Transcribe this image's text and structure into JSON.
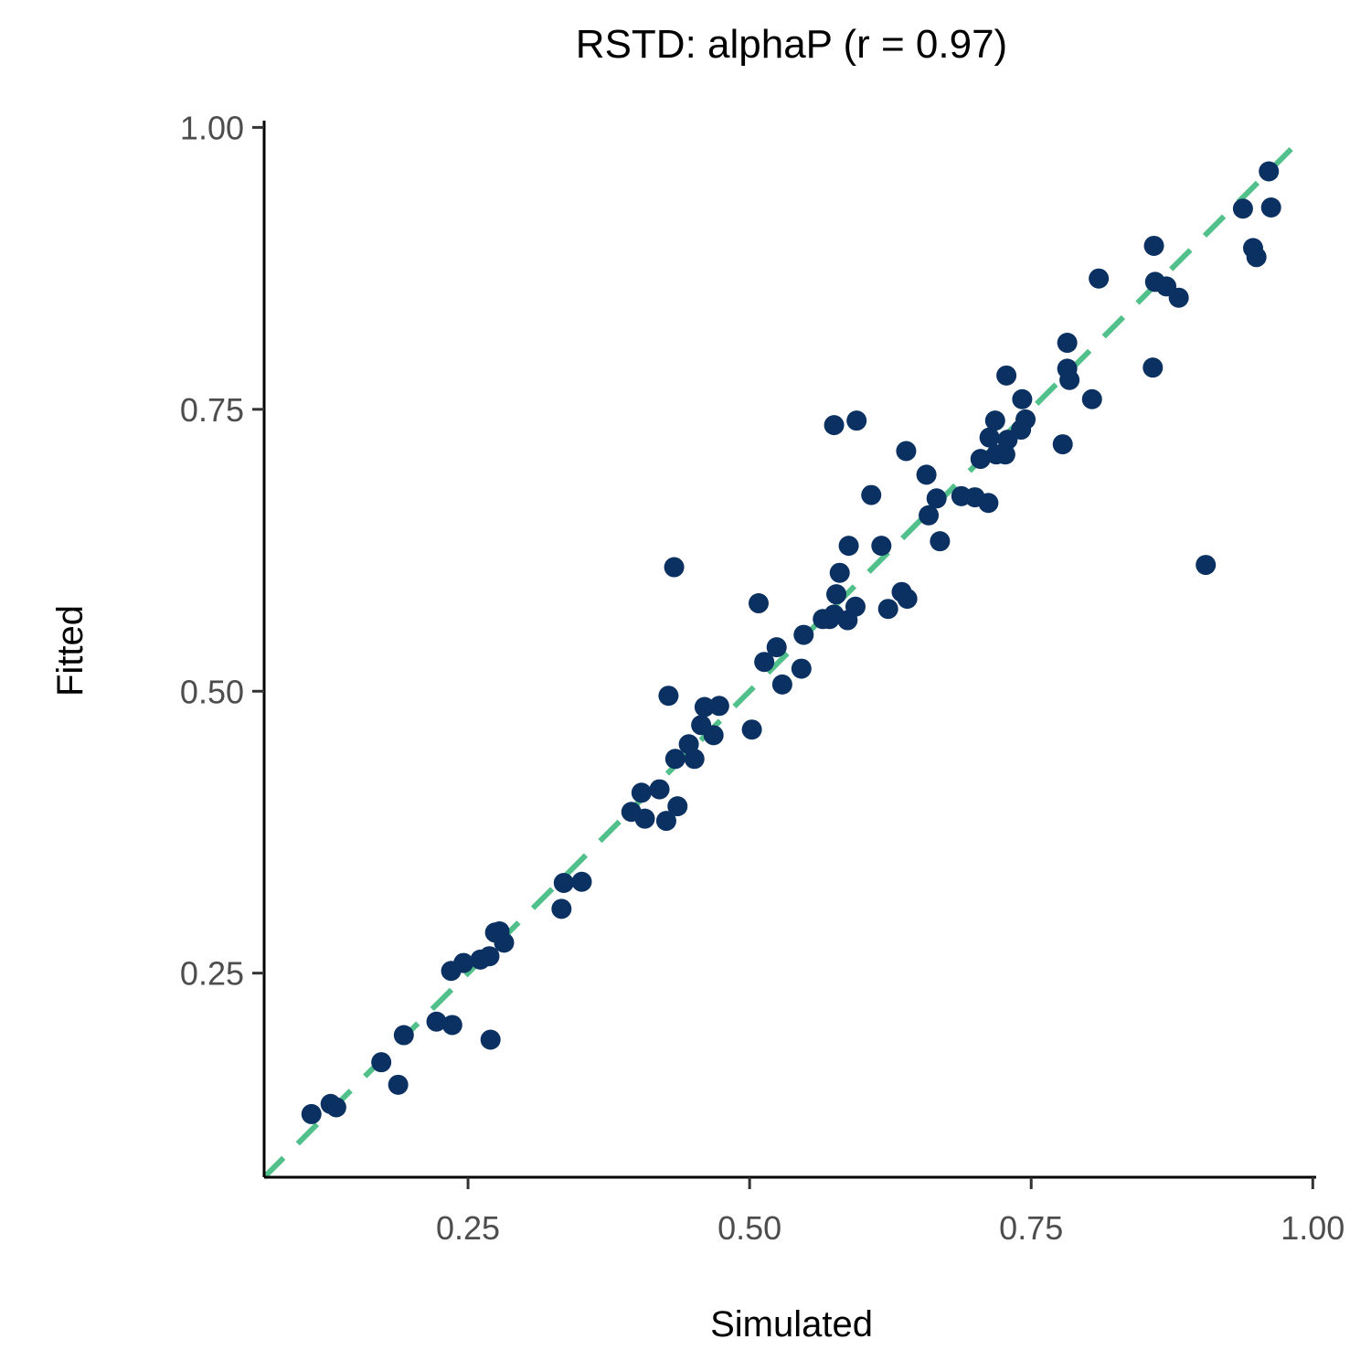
{
  "chart_data": {
    "type": "scatter",
    "title": "RSTD: alphaP (r = 0.97)",
    "xlabel": "Simulated",
    "ylabel": "Fitted",
    "xlim": [
      0.069,
      1.003
    ],
    "ylim": [
      0.069,
      1.006
    ],
    "xticks": [
      "0.25",
      "0.50",
      "0.75",
      "1.00"
    ],
    "yticks": [
      "0.25",
      "0.50",
      "0.75",
      "1.00"
    ],
    "grid": false,
    "point_color": "#0a3161",
    "reference_line": {
      "type": "identity",
      "style": "dashed",
      "color": "#52c08a"
    },
    "points": [
      [
        0.111,
        0.125
      ],
      [
        0.128,
        0.134
      ],
      [
        0.133,
        0.131
      ],
      [
        0.173,
        0.171
      ],
      [
        0.188,
        0.151
      ],
      [
        0.193,
        0.195
      ],
      [
        0.222,
        0.207
      ],
      [
        0.236,
        0.204
      ],
      [
        0.27,
        0.191
      ],
      [
        0.235,
        0.252
      ],
      [
        0.246,
        0.259
      ],
      [
        0.261,
        0.262
      ],
      [
        0.269,
        0.265
      ],
      [
        0.274,
        0.286
      ],
      [
        0.278,
        0.287
      ],
      [
        0.282,
        0.277
      ],
      [
        0.333,
        0.307
      ],
      [
        0.335,
        0.33
      ],
      [
        0.351,
        0.331
      ],
      [
        0.395,
        0.393
      ],
      [
        0.404,
        0.41
      ],
      [
        0.407,
        0.387
      ],
      [
        0.42,
        0.413
      ],
      [
        0.426,
        0.385
      ],
      [
        0.436,
        0.398
      ],
      [
        0.434,
        0.44
      ],
      [
        0.428,
        0.496
      ],
      [
        0.433,
        0.61
      ],
      [
        0.446,
        0.453
      ],
      [
        0.451,
        0.44
      ],
      [
        0.457,
        0.47
      ],
      [
        0.46,
        0.486
      ],
      [
        0.468,
        0.461
      ],
      [
        0.473,
        0.487
      ],
      [
        0.502,
        0.466
      ],
      [
        0.508,
        0.578
      ],
      [
        0.513,
        0.526
      ],
      [
        0.524,
        0.539
      ],
      [
        0.529,
        0.506
      ],
      [
        0.546,
        0.52
      ],
      [
        0.548,
        0.55
      ],
      [
        0.565,
        0.564
      ],
      [
        0.571,
        0.564
      ],
      [
        0.575,
        0.568
      ],
      [
        0.577,
        0.586
      ],
      [
        0.58,
        0.605
      ],
      [
        0.587,
        0.563
      ],
      [
        0.594,
        0.575
      ],
      [
        0.588,
        0.629
      ],
      [
        0.575,
        0.736
      ],
      [
        0.595,
        0.74
      ],
      [
        0.608,
        0.674
      ],
      [
        0.617,
        0.629
      ],
      [
        0.623,
        0.573
      ],
      [
        0.635,
        0.588
      ],
      [
        0.64,
        0.582
      ],
      [
        0.639,
        0.713
      ],
      [
        0.657,
        0.692
      ],
      [
        0.659,
        0.656
      ],
      [
        0.666,
        0.671
      ],
      [
        0.669,
        0.633
      ],
      [
        0.688,
        0.673
      ],
      [
        0.7,
        0.672
      ],
      [
        0.712,
        0.667
      ],
      [
        0.705,
        0.706
      ],
      [
        0.713,
        0.725
      ],
      [
        0.718,
        0.74
      ],
      [
        0.719,
        0.71
      ],
      [
        0.727,
        0.71
      ],
      [
        0.728,
        0.78
      ],
      [
        0.729,
        0.723
      ],
      [
        0.741,
        0.732
      ],
      [
        0.745,
        0.741
      ],
      [
        0.742,
        0.759
      ],
      [
        0.778,
        0.719
      ],
      [
        0.782,
        0.809
      ],
      [
        0.782,
        0.786
      ],
      [
        0.784,
        0.776
      ],
      [
        0.804,
        0.759
      ],
      [
        0.81,
        0.866
      ],
      [
        0.858,
        0.787
      ],
      [
        0.859,
        0.895
      ],
      [
        0.86,
        0.863
      ],
      [
        0.87,
        0.859
      ],
      [
        0.881,
        0.849
      ],
      [
        0.905,
        0.612
      ],
      [
        0.938,
        0.928
      ],
      [
        0.947,
        0.893
      ],
      [
        0.95,
        0.885
      ],
      [
        0.961,
        0.961
      ],
      [
        0.963,
        0.929
      ]
    ]
  }
}
